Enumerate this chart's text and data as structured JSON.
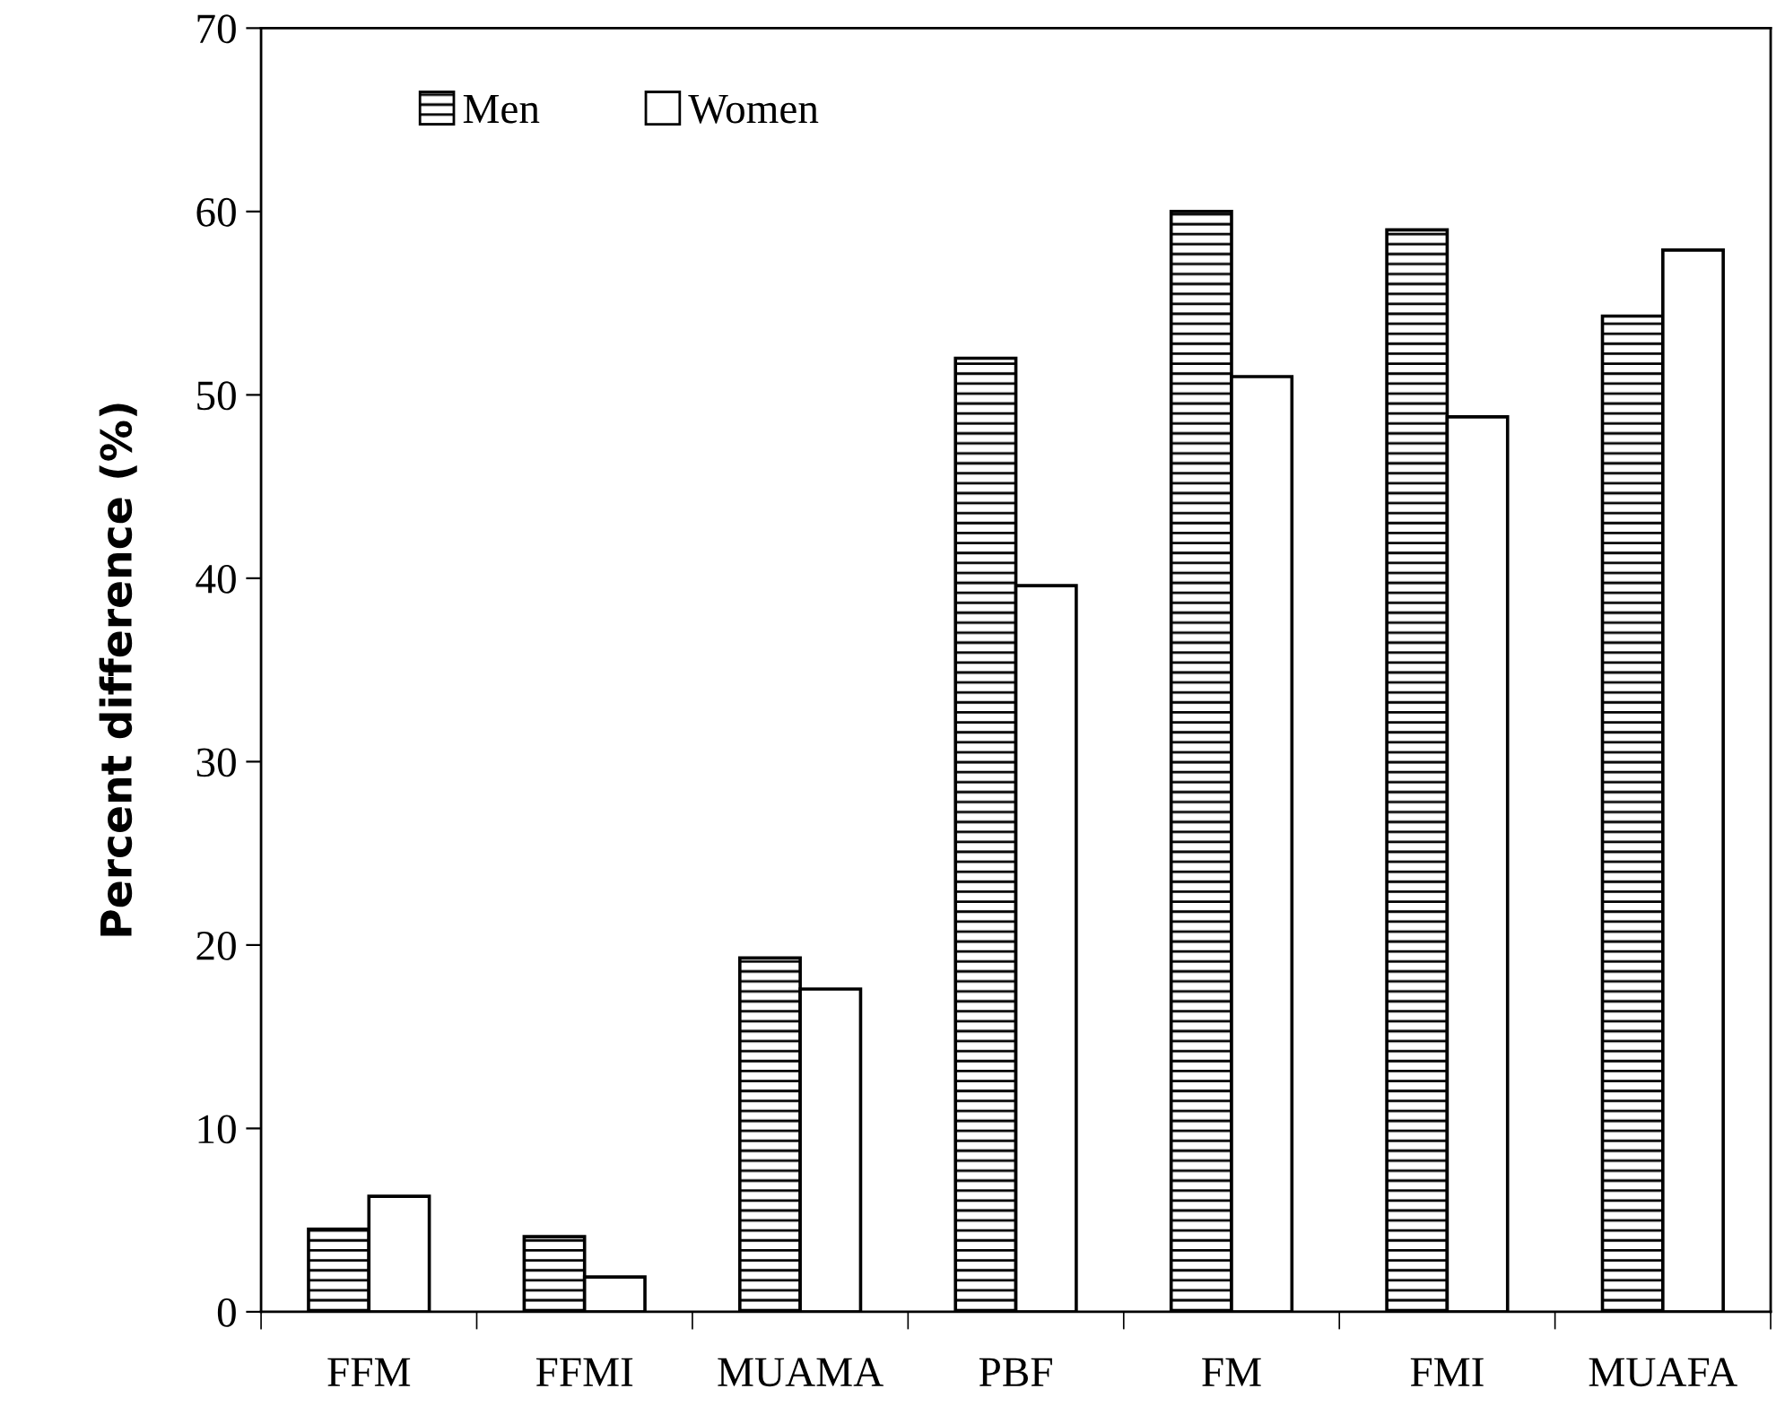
{
  "chart_data": {
    "type": "bar",
    "ylabel": "Percent difference (%)",
    "categories": [
      "FFM",
      "FFMI",
      "MUAMA",
      "PBF",
      "FM",
      "FMI",
      "MUAFA"
    ],
    "series": [
      {
        "name": "Men",
        "color": "#000000",
        "values": [
          4.5,
          4.1,
          19.3,
          52.0,
          60.0,
          59.0,
          54.3
        ]
      },
      {
        "name": "Women",
        "color": "#ffffff",
        "values": [
          6.3,
          1.9,
          17.6,
          39.6,
          51.0,
          48.8,
          57.9
        ]
      }
    ],
    "ylim": [
      0,
      70
    ],
    "yticks": [
      0,
      10,
      20,
      30,
      40,
      50,
      60,
      70
    ],
    "grid": false,
    "legend": "top left"
  }
}
